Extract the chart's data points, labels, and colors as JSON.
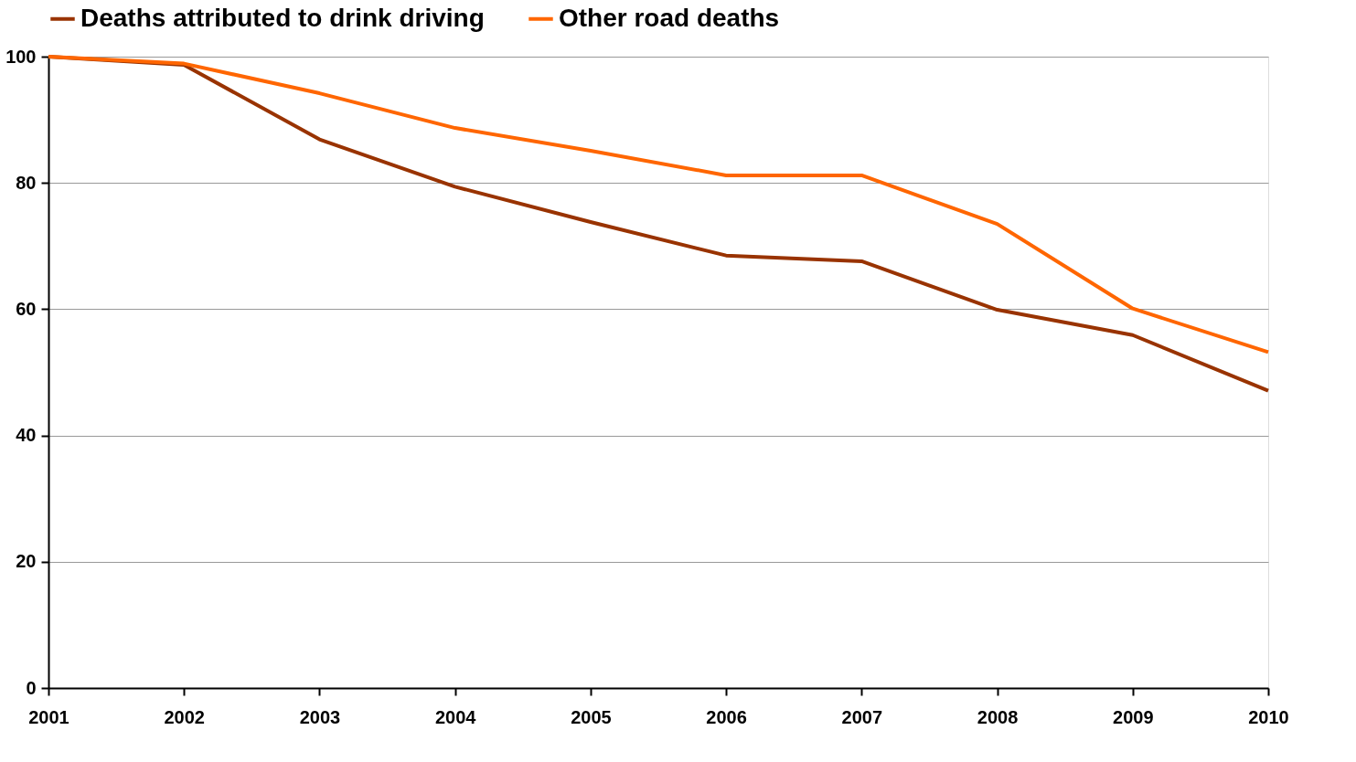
{
  "chart_data": {
    "type": "line",
    "x": [
      2001,
      2002,
      2003,
      2004,
      2005,
      2006,
      2007,
      2008,
      2009,
      2010
    ],
    "series": [
      {
        "name": "Deaths attributed to drink driving",
        "color": "#993300",
        "values": [
          100,
          98.7,
          86.9,
          79.4,
          73.8,
          68.5,
          67.6,
          59.9,
          55.9,
          47.1
        ]
      },
      {
        "name": "Other road deaths",
        "color": "#ff6600",
        "values": [
          100,
          98.9,
          94.2,
          88.7,
          85.1,
          81.2,
          81.2,
          73.5,
          60.1,
          53.2
        ]
      }
    ],
    "xlim": [
      2001,
      2010
    ],
    "xticks": [
      2001,
      2002,
      2003,
      2004,
      2005,
      2006,
      2007,
      2008,
      2009,
      2010
    ],
    "ylim": [
      0,
      100
    ],
    "yticks": [
      0,
      20,
      40,
      60,
      80,
      100
    ],
    "grid": "y",
    "legend": "top",
    "marker": "none",
    "line_style": "solid"
  }
}
